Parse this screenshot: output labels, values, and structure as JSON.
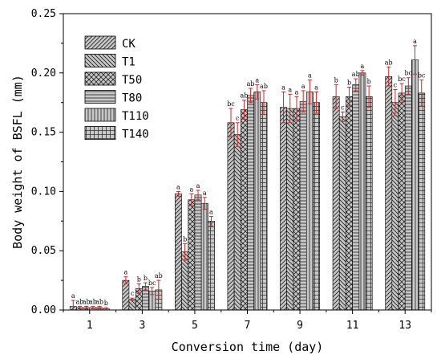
{
  "chart_data": {
    "type": "bar",
    "xlabel": "Conversion time (day)",
    "ylabel": "Body weight of BSFL (mm)",
    "categories": [
      "1",
      "3",
      "5",
      "7",
      "9",
      "11",
      "13"
    ],
    "ylim": [
      0,
      0.25
    ],
    "yticks": [
      "0.00",
      "0.05",
      "0.10",
      "0.15",
      "0.20",
      "0.25"
    ],
    "legend_position": "top-left",
    "bar_fill": "#c8c8c8",
    "error_color": "#e02020",
    "series": [
      {
        "name": "CK",
        "pattern": "diag-forward",
        "values": [
          0.003,
          0.025,
          0.098,
          0.158,
          0.171,
          0.18,
          0.197
        ],
        "errors": [
          0.005,
          0.003,
          0.002,
          0.012,
          0.013,
          0.01,
          0.008
        ],
        "labels": [
          "a",
          "a",
          "a",
          "bc",
          "a",
          "b",
          "ab"
        ]
      },
      {
        "name": "T1",
        "pattern": "diag-back",
        "values": [
          0.002,
          0.009,
          0.049,
          0.148,
          0.17,
          0.163,
          0.175
        ],
        "errors": [
          0.001,
          0.001,
          0.007,
          0.01,
          0.012,
          0.004,
          0.011
        ],
        "labels": [
          "ab",
          "c",
          "b",
          "c",
          "a",
          "c",
          "c"
        ]
      },
      {
        "name": "T50",
        "pattern": "crosshatch",
        "values": [
          0.002,
          0.018,
          0.093,
          0.169,
          0.17,
          0.18,
          0.183
        ],
        "errors": [
          0.001,
          0.004,
          0.005,
          0.008,
          0.01,
          0.008,
          0.008
        ],
        "labels": [
          "ab",
          "b",
          "a",
          "ab",
          "a",
          "b",
          "bc"
        ]
      },
      {
        "name": "T80",
        "pattern": "horizontal",
        "values": [
          0.002,
          0.02,
          0.097,
          0.181,
          0.176,
          0.19,
          0.189
        ],
        "errors": [
          0.001,
          0.003,
          0.004,
          0.006,
          0.009,
          0.005,
          0.007
        ],
        "labels": [
          "ab",
          "b",
          "a",
          "ab",
          "a",
          "ab",
          "bc"
        ]
      },
      {
        "name": "T110",
        "pattern": "vertical",
        "values": [
          0.002,
          0.016,
          0.09,
          0.184,
          0.184,
          0.2,
          0.211
        ],
        "errors": [
          0.001,
          0.003,
          0.005,
          0.006,
          0.01,
          0.002,
          0.012
        ],
        "labels": [
          "ab",
          "bc",
          "a",
          "a",
          "a",
          "a",
          "a"
        ]
      },
      {
        "name": "T140",
        "pattern": "grid",
        "values": [
          0.001,
          0.017,
          0.075,
          0.175,
          0.175,
          0.18,
          0.183
        ],
        "errors": [
          0.001,
          0.008,
          0.004,
          0.01,
          0.009,
          0.009,
          0.011
        ],
        "labels": [
          "b",
          "ab",
          "a",
          "ab",
          "a",
          "b",
          "bc"
        ]
      }
    ]
  }
}
